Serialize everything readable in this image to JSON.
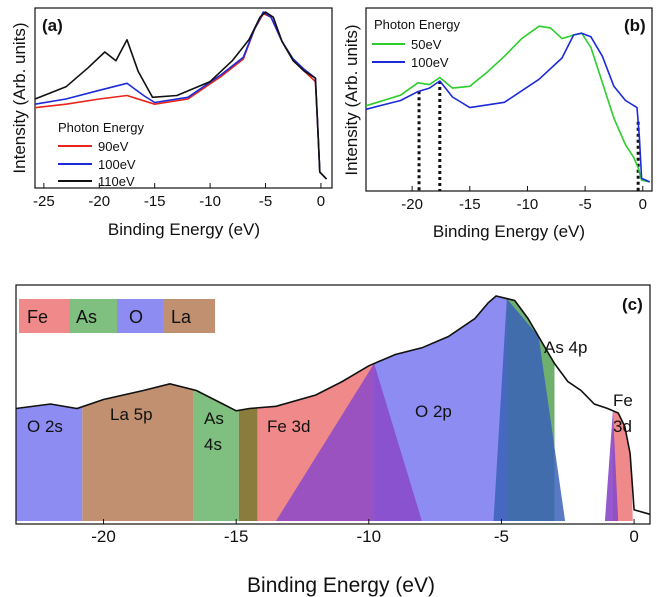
{
  "chart_data": [
    {
      "id": "a",
      "type": "line",
      "panel_label": "(a)",
      "xlabel": "Binding Energy (eV)",
      "ylabel": "Intensity (Arb. units)",
      "xlim": [
        -25.8,
        1
      ],
      "ylim": [
        0,
        1.0
      ],
      "x_ticks": [
        -25,
        -20,
        -15,
        -10,
        -5,
        0
      ],
      "x_tick_labels": [
        "-25",
        "-20",
        "-15",
        "-10",
        "-5",
        "0"
      ],
      "legend": {
        "title": "Photon Energy",
        "position": "bottom-left"
      },
      "series": [
        {
          "name": "90eV",
          "color": "#e8241c",
          "points": [
            [
              -25.8,
              0.45
            ],
            [
              -23,
              0.47
            ],
            [
              -20,
              0.5
            ],
            [
              -17.5,
              0.52
            ],
            [
              -15,
              0.47
            ],
            [
              -12,
              0.5
            ],
            [
              -9,
              0.63
            ],
            [
              -7,
              0.73
            ],
            [
              -6,
              0.9
            ],
            [
              -5.2,
              0.99
            ],
            [
              -4.5,
              0.97
            ],
            [
              -3.5,
              0.83
            ],
            [
              -2.5,
              0.72
            ],
            [
              -1.5,
              0.66
            ],
            [
              -0.5,
              0.6
            ],
            [
              -0.3,
              0.35
            ],
            [
              -0.1,
              0.08
            ],
            [
              0.5,
              0.04
            ]
          ]
        },
        {
          "name": "100eV",
          "color": "#1c2bd8",
          "points": [
            [
              -25.8,
              0.47
            ],
            [
              -23,
              0.5
            ],
            [
              -20,
              0.55
            ],
            [
              -17.5,
              0.59
            ],
            [
              -16,
              0.52
            ],
            [
              -15,
              0.48
            ],
            [
              -12,
              0.51
            ],
            [
              -9,
              0.64
            ],
            [
              -7,
              0.74
            ],
            [
              -6,
              0.9
            ],
            [
              -5.2,
              1.0
            ],
            [
              -4.5,
              0.97
            ],
            [
              -3.5,
              0.83
            ],
            [
              -2.5,
              0.73
            ],
            [
              -1.5,
              0.67
            ],
            [
              -0.5,
              0.62
            ],
            [
              -0.3,
              0.36
            ],
            [
              -0.1,
              0.08
            ],
            [
              0.5,
              0.04
            ]
          ]
        },
        {
          "name": "110eV",
          "color": "#111111",
          "points": [
            [
              -25.8,
              0.5
            ],
            [
              -23,
              0.57
            ],
            [
              -21,
              0.68
            ],
            [
              -19.5,
              0.77
            ],
            [
              -18.5,
              0.72
            ],
            [
              -17.5,
              0.84
            ],
            [
              -16.5,
              0.66
            ],
            [
              -15.2,
              0.51
            ],
            [
              -13,
              0.52
            ],
            [
              -10,
              0.6
            ],
            [
              -8,
              0.72
            ],
            [
              -6.5,
              0.84
            ],
            [
              -5.5,
              0.97
            ],
            [
              -5,
              1.0
            ],
            [
              -4.3,
              0.97
            ],
            [
              -3.5,
              0.83
            ],
            [
              -2.5,
              0.72
            ],
            [
              -1.5,
              0.66
            ],
            [
              -0.5,
              0.62
            ],
            [
              -0.3,
              0.36
            ],
            [
              -0.1,
              0.08
            ],
            [
              0.5,
              0.04
            ]
          ]
        }
      ]
    },
    {
      "id": "b",
      "type": "line",
      "panel_label": "(b)",
      "xlabel": "Binding Energy (eV)",
      "ylabel": "Intensity (Arb. units)",
      "xlim": [
        -24,
        0.8
      ],
      "ylim": [
        0,
        1.0
      ],
      "x_ticks": [
        -20,
        -15,
        -10,
        -5,
        0
      ],
      "x_tick_labels": [
        "-20",
        "-15",
        "-10",
        "-5",
        "0"
      ],
      "legend": {
        "title": "Photon Energy",
        "position": "top-left"
      },
      "markers_x": [
        -19.4,
        -17.6,
        -0.4
      ],
      "series": [
        {
          "name": "50eV",
          "color": "#2ccd2c",
          "points": [
            [
              -24,
              0.47
            ],
            [
              -21,
              0.53
            ],
            [
              -19.5,
              0.6
            ],
            [
              -18.5,
              0.59
            ],
            [
              -17.6,
              0.63
            ],
            [
              -16.5,
              0.57
            ],
            [
              -15,
              0.58
            ],
            [
              -13.5,
              0.66
            ],
            [
              -12,
              0.75
            ],
            [
              -10.5,
              0.85
            ],
            [
              -9,
              0.92
            ],
            [
              -8,
              0.91
            ],
            [
              -7,
              0.85
            ],
            [
              -6,
              0.87
            ],
            [
              -5.3,
              0.88
            ],
            [
              -4.5,
              0.8
            ],
            [
              -3.5,
              0.6
            ],
            [
              -2.5,
              0.4
            ],
            [
              -1.5,
              0.25
            ],
            [
              -0.8,
              0.18
            ],
            [
              -0.4,
              0.12
            ],
            [
              -0.1,
              0.05
            ],
            [
              0.6,
              0.04
            ]
          ]
        },
        {
          "name": "100eV",
          "color": "#1c2bd8",
          "points": [
            [
              -24,
              0.45
            ],
            [
              -21,
              0.5
            ],
            [
              -19.5,
              0.55
            ],
            [
              -18.5,
              0.57
            ],
            [
              -17.6,
              0.61
            ],
            [
              -16.5,
              0.52
            ],
            [
              -15,
              0.46
            ],
            [
              -12,
              0.49
            ],
            [
              -9,
              0.62
            ],
            [
              -7,
              0.74
            ],
            [
              -6,
              0.87
            ],
            [
              -5.3,
              0.88
            ],
            [
              -4.5,
              0.86
            ],
            [
              -3.5,
              0.75
            ],
            [
              -2.5,
              0.58
            ],
            [
              -1.5,
              0.5
            ],
            [
              -0.5,
              0.46
            ],
            [
              -0.3,
              0.3
            ],
            [
              -0.1,
              0.06
            ],
            [
              0.6,
              0.04
            ]
          ]
        }
      ]
    },
    {
      "id": "c",
      "type": "area",
      "panel_label": "(c)",
      "xlabel": "Binding Energy (eV)",
      "xlim": [
        -23.3,
        0.6
      ],
      "ylim": [
        0,
        1.0
      ],
      "x_ticks": [
        -20,
        -15,
        -10,
        -5,
        0
      ],
      "x_tick_labels": [
        "-20",
        "-15",
        "-10",
        "-5",
        "0"
      ],
      "element_key": [
        {
          "label": "Fe",
          "color": "#f08a8a"
        },
        {
          "label": "As",
          "color": "#7fbf7f"
        },
        {
          "label": "O",
          "color": "#8c8cf2"
        },
        {
          "label": "La",
          "color": "#c09070"
        }
      ],
      "envelope": [
        [
          -23.3,
          0.5
        ],
        [
          -22,
          0.52
        ],
        [
          -21,
          0.5
        ],
        [
          -20,
          0.54
        ],
        [
          -18.5,
          0.58
        ],
        [
          -17.5,
          0.61
        ],
        [
          -16.5,
          0.58
        ],
        [
          -15.5,
          0.52
        ],
        [
          -15,
          0.49
        ],
        [
          -14.5,
          0.5
        ],
        [
          -13.5,
          0.51
        ],
        [
          -12,
          0.56
        ],
        [
          -11,
          0.62
        ],
        [
          -10,
          0.69
        ],
        [
          -9,
          0.74
        ],
        [
          -8,
          0.77
        ],
        [
          -7,
          0.82
        ],
        [
          -6,
          0.9
        ],
        [
          -5.5,
          0.97
        ],
        [
          -5.2,
          1.0
        ],
        [
          -4.5,
          0.98
        ],
        [
          -4,
          0.9
        ],
        [
          -3.5,
          0.8
        ],
        [
          -3,
          0.7
        ],
        [
          -2.5,
          0.62
        ],
        [
          -2,
          0.58
        ],
        [
          -1.5,
          0.52
        ],
        [
          -1,
          0.5
        ],
        [
          -0.6,
          0.48
        ],
        [
          -0.35,
          0.42
        ],
        [
          -0.15,
          0.3
        ],
        [
          0,
          0.05
        ],
        [
          0.6,
          0.03
        ]
      ],
      "regions": [
        {
          "label": "O 2s",
          "color": "#8c8cf2",
          "from": -23.3,
          "to": -20.8
        },
        {
          "label": "La 5p",
          "color": "#c09070",
          "from": -20.8,
          "to": -16.6
        },
        {
          "label": "As 4s",
          "color": "#7fbf7f",
          "from": -16.6,
          "to": -14.9
        },
        {
          "label": "Fe 3d",
          "color": "#f08a8a",
          "from": -14.2,
          "to": -9.8
        },
        {
          "label": "O 2p",
          "color": "#8c8cf2",
          "from": -9.8,
          "to": -4.8
        },
        {
          "label": "As 4p",
          "color": "#6fb06f",
          "from": -4.8,
          "to": -3.0
        },
        {
          "label": "Fe 3d",
          "color": "#f08a8a",
          "from": -0.8,
          "to": -0.05
        }
      ]
    }
  ]
}
